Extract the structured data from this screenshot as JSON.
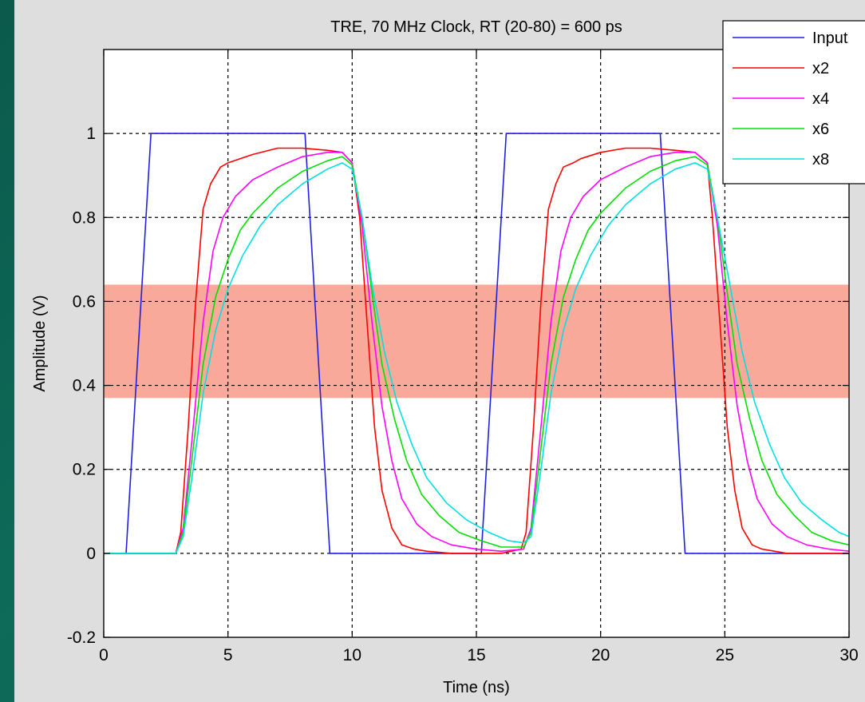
{
  "chart_data": {
    "type": "line",
    "title": "TRE, 70 MHz Clock, RT (20-80) = 600 ps",
    "xlabel": "Time (ns)",
    "ylabel": "Amplitude (V)",
    "xlim": [
      0,
      30
    ],
    "ylim": [
      -0.2,
      1.2
    ],
    "xticks": [
      0,
      5,
      10,
      15,
      20,
      25,
      30
    ],
    "xtick_labels": [
      "0",
      "5",
      "10",
      "15",
      "20",
      "25",
      "30"
    ],
    "yticks": [
      -0.2,
      0,
      0.2,
      0.4,
      0.6,
      0.8,
      1
    ],
    "ytick_labels": [
      "-0.2",
      "0",
      "0.2",
      "0.4",
      "0.6",
      "0.8",
      "1"
    ],
    "grid": true,
    "legend_position": "top-right",
    "highlight_band": {
      "y_range": [
        0.37,
        0.64
      ],
      "color": "#f7a08e"
    },
    "series": [
      {
        "name": "Input",
        "color": "#2020e0",
        "x": [
          0,
          0.9,
          1.9,
          8.1,
          9.1,
          15.2,
          16.2,
          22.4,
          23.4,
          30
        ],
        "y": [
          0,
          0,
          1,
          1,
          0,
          0,
          1,
          1,
          0,
          0
        ]
      },
      {
        "name": "x2",
        "color": "#ff0000",
        "x": [
          0,
          2.9,
          3.1,
          3.4,
          3.7,
          4.0,
          4.3,
          4.7,
          5.0,
          6.0,
          7.0,
          8.0,
          9.0,
          9.6,
          10.0,
          10.3,
          10.6,
          10.9,
          11.2,
          11.6,
          12.0,
          12.5,
          13.0,
          14.0,
          15.0,
          16.0,
          16.8,
          17.0,
          17.3,
          17.6,
          17.9,
          18.2,
          18.5,
          18.9,
          19.2,
          20.0,
          21.0,
          22.0,
          23.0,
          23.8,
          24.3,
          24.5,
          24.8,
          25.1,
          25.4,
          25.7,
          26.1,
          26.5,
          27.0,
          27.5,
          28.5,
          29.5,
          30.0
        ],
        "y": [
          0,
          0,
          0.05,
          0.3,
          0.6,
          0.82,
          0.88,
          0.92,
          0.93,
          0.95,
          0.965,
          0.965,
          0.96,
          0.955,
          0.93,
          0.8,
          0.55,
          0.3,
          0.15,
          0.06,
          0.02,
          0.01,
          0.005,
          0,
          0,
          0,
          0.01,
          0.05,
          0.3,
          0.6,
          0.82,
          0.88,
          0.92,
          0.93,
          0.94,
          0.955,
          0.965,
          0.965,
          0.96,
          0.955,
          0.93,
          0.8,
          0.55,
          0.3,
          0.15,
          0.06,
          0.02,
          0.01,
          0.005,
          0,
          0,
          0,
          0
        ]
      },
      {
        "name": "x4",
        "color": "#ff00ff",
        "x": [
          0,
          2.9,
          3.2,
          3.6,
          4.0,
          4.4,
          4.8,
          5.3,
          6.0,
          7.0,
          8.0,
          9.0,
          9.6,
          10.0,
          10.4,
          10.8,
          11.2,
          11.6,
          12.0,
          12.6,
          13.2,
          14.0,
          15.0,
          16.0,
          16.9,
          17.2,
          17.6,
          18.0,
          18.4,
          18.8,
          19.3,
          20.0,
          21.0,
          22.0,
          23.0,
          23.8,
          24.3,
          24.7,
          25.1,
          25.5,
          25.9,
          26.3,
          26.9,
          27.5,
          28.3,
          29.2,
          30.0
        ],
        "y": [
          0,
          0,
          0.06,
          0.3,
          0.55,
          0.72,
          0.8,
          0.85,
          0.89,
          0.92,
          0.945,
          0.955,
          0.955,
          0.93,
          0.78,
          0.55,
          0.35,
          0.22,
          0.13,
          0.07,
          0.04,
          0.02,
          0.01,
          0.005,
          0.01,
          0.06,
          0.3,
          0.55,
          0.72,
          0.8,
          0.85,
          0.89,
          0.92,
          0.945,
          0.955,
          0.955,
          0.93,
          0.78,
          0.55,
          0.35,
          0.22,
          0.13,
          0.07,
          0.04,
          0.02,
          0.01,
          0.005
        ]
      },
      {
        "name": "x6",
        "color": "#00e000",
        "x": [
          0,
          2.9,
          3.2,
          3.6,
          4.0,
          4.5,
          5.0,
          5.5,
          6.0,
          7.0,
          8.0,
          9.0,
          9.6,
          10.0,
          10.4,
          10.8,
          11.2,
          11.7,
          12.2,
          12.8,
          13.5,
          14.3,
          15.2,
          16.0,
          16.9,
          17.2,
          17.6,
          18.0,
          18.5,
          19.0,
          19.5,
          20.0,
          21.0,
          22.0,
          23.0,
          23.8,
          24.3,
          24.7,
          25.1,
          25.5,
          26.0,
          26.5,
          27.1,
          27.8,
          28.5,
          29.3,
          30.0
        ],
        "y": [
          0,
          0,
          0.05,
          0.25,
          0.45,
          0.61,
          0.7,
          0.77,
          0.81,
          0.87,
          0.91,
          0.935,
          0.945,
          0.925,
          0.8,
          0.62,
          0.45,
          0.32,
          0.22,
          0.14,
          0.09,
          0.05,
          0.03,
          0.015,
          0.015,
          0.05,
          0.25,
          0.45,
          0.61,
          0.7,
          0.77,
          0.81,
          0.87,
          0.91,
          0.935,
          0.945,
          0.925,
          0.8,
          0.62,
          0.45,
          0.32,
          0.22,
          0.14,
          0.09,
          0.05,
          0.03,
          0.02
        ]
      },
      {
        "name": "x8",
        "color": "#00e0e0",
        "x": [
          0,
          2.9,
          3.2,
          3.6,
          4.0,
          4.5,
          5.0,
          5.6,
          6.3,
          7.0,
          8.0,
          9.0,
          9.6,
          10.0,
          10.4,
          10.8,
          11.3,
          11.8,
          12.4,
          13.0,
          13.8,
          14.6,
          15.5,
          16.3,
          16.9,
          17.2,
          17.6,
          18.0,
          18.5,
          19.0,
          19.6,
          20.3,
          21.0,
          22.0,
          23.0,
          23.8,
          24.3,
          24.7,
          25.2,
          25.7,
          26.2,
          26.8,
          27.4,
          28.1,
          28.9,
          29.6,
          30.0
        ],
        "y": [
          0,
          0,
          0.04,
          0.2,
          0.38,
          0.53,
          0.63,
          0.71,
          0.78,
          0.83,
          0.88,
          0.915,
          0.93,
          0.915,
          0.8,
          0.64,
          0.48,
          0.36,
          0.26,
          0.18,
          0.12,
          0.08,
          0.05,
          0.03,
          0.025,
          0.04,
          0.2,
          0.38,
          0.53,
          0.63,
          0.71,
          0.78,
          0.83,
          0.88,
          0.915,
          0.93,
          0.915,
          0.8,
          0.64,
          0.48,
          0.36,
          0.26,
          0.18,
          0.12,
          0.08,
          0.05,
          0.04
        ]
      }
    ]
  }
}
